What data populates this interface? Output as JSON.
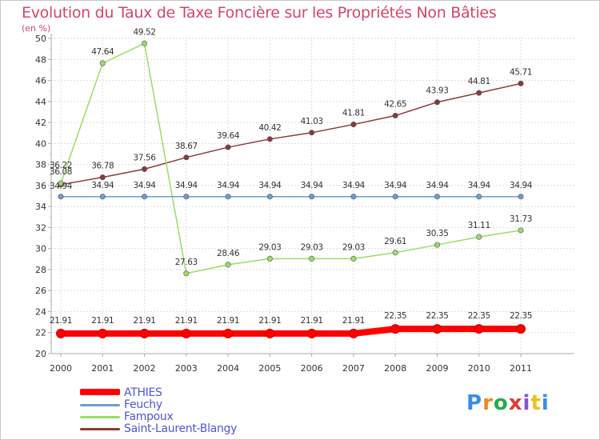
{
  "title": "Evolution du Taux de Taxe Foncière sur les Propriétés Non Bâties",
  "unit_label": "(en %)",
  "logo": "Proxiti",
  "chart_data": {
    "type": "line",
    "title": "Evolution du Taux de Taxe Foncière sur les Propriétés Non Bâties",
    "ylabel": "(en %)",
    "xlabel": "",
    "ylim": [
      20,
      50
    ],
    "ytick_step": 2,
    "grid": true,
    "legend_position": "bottom-left",
    "x": [
      "2000",
      "2001",
      "2002",
      "2003",
      "2004",
      "2005",
      "2006",
      "2007",
      "2008",
      "2009",
      "2010",
      "2011"
    ],
    "series": [
      {
        "name": "ATHIES",
        "color": "#ff0000",
        "values": [
          21.91,
          21.91,
          21.91,
          21.91,
          21.91,
          21.91,
          21.91,
          21.91,
          22.35,
          22.35,
          22.35,
          22.35
        ],
        "labels": [
          "21.91",
          "21.91",
          "21.91",
          "21.91",
          "21.91",
          "21.91",
          "21.91",
          "21.91",
          "22.35",
          "22.35",
          "22.35",
          "22.35"
        ]
      },
      {
        "name": "Feuchy",
        "color": "#6b9ed3",
        "values": [
          34.94,
          34.94,
          34.94,
          34.94,
          34.94,
          34.94,
          34.94,
          34.94,
          34.94,
          34.94,
          34.94,
          34.94
        ],
        "labels": [
          "34.94",
          "34.94",
          "34.94",
          "34.94",
          "34.94",
          "34.94",
          "34.94",
          "34.94",
          "34.94",
          "34.94",
          "34.94",
          "34.94"
        ]
      },
      {
        "name": "Fampoux",
        "color": "#99dd66",
        "values": [
          36.22,
          47.64,
          49.52,
          27.63,
          28.46,
          29.03,
          29.03,
          29.03,
          29.61,
          30.35,
          31.11,
          31.73
        ],
        "labels": [
          "36.22",
          "47.64",
          "49.52",
          "27.63",
          "28.46",
          "29.03",
          "29.03",
          "29.03",
          "29.61",
          "30.35",
          "31.11",
          "31.73"
        ]
      },
      {
        "name": "Saint-Laurent-Blangy",
        "color": "#8b3a3a",
        "values": [
          36.08,
          36.78,
          37.56,
          38.67,
          39.64,
          40.42,
          41.03,
          41.81,
          42.65,
          43.93,
          44.81,
          45.71
        ],
        "labels": [
          "36.08",
          "36.78",
          "37.56",
          "38.67",
          "39.64",
          "40.42",
          "41.03",
          "41.81",
          "42.65",
          "43.93",
          "44.81",
          "45.71"
        ]
      }
    ]
  }
}
